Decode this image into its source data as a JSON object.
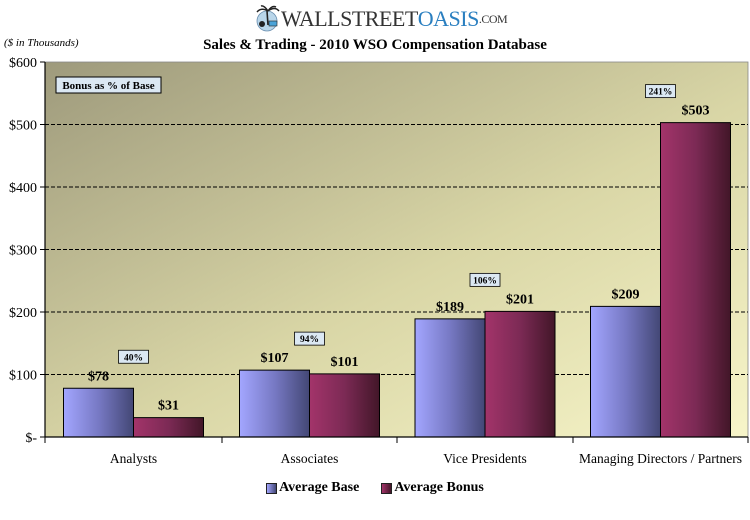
{
  "logo": {
    "part1": "WALLSTREET",
    "part2": "OASIS",
    "part3": ".COM",
    "icon": "palm-tree-laptop-icon"
  },
  "chart_data": {
    "type": "bar",
    "title": "Sales & Trading - 2010 WSO Compensation Database",
    "ylabel": "($ in Thousands)",
    "xlabel": "",
    "ylim": [
      0,
      600
    ],
    "yticks": [
      0,
      100,
      200,
      300,
      400,
      500,
      600
    ],
    "ytick_labels": [
      "$-",
      "$100",
      "$200",
      "$300",
      "$400",
      "$500",
      "$600"
    ],
    "grid": "dashed horizontal",
    "categories": [
      "Analysts",
      "Associates",
      "Vice Presidents",
      "Managing Directors / Partners"
    ],
    "series": [
      {
        "name": "Average Base",
        "values": [
          78,
          107,
          189,
          209
        ],
        "labels": [
          "$78",
          "$107",
          "$189",
          "$209"
        ],
        "color": "#6c6fc4"
      },
      {
        "name": "Average Bonus",
        "values": [
          31,
          101,
          201,
          503
        ],
        "labels": [
          "$31",
          "$101",
          "$201",
          "$503"
        ],
        "color": "#7a2a55"
      }
    ],
    "annotation_title": "Bonus as % of Base",
    "bonus_pct_labels": [
      "40%",
      "94%",
      "106%",
      "241%"
    ],
    "legend_position": "bottom"
  }
}
